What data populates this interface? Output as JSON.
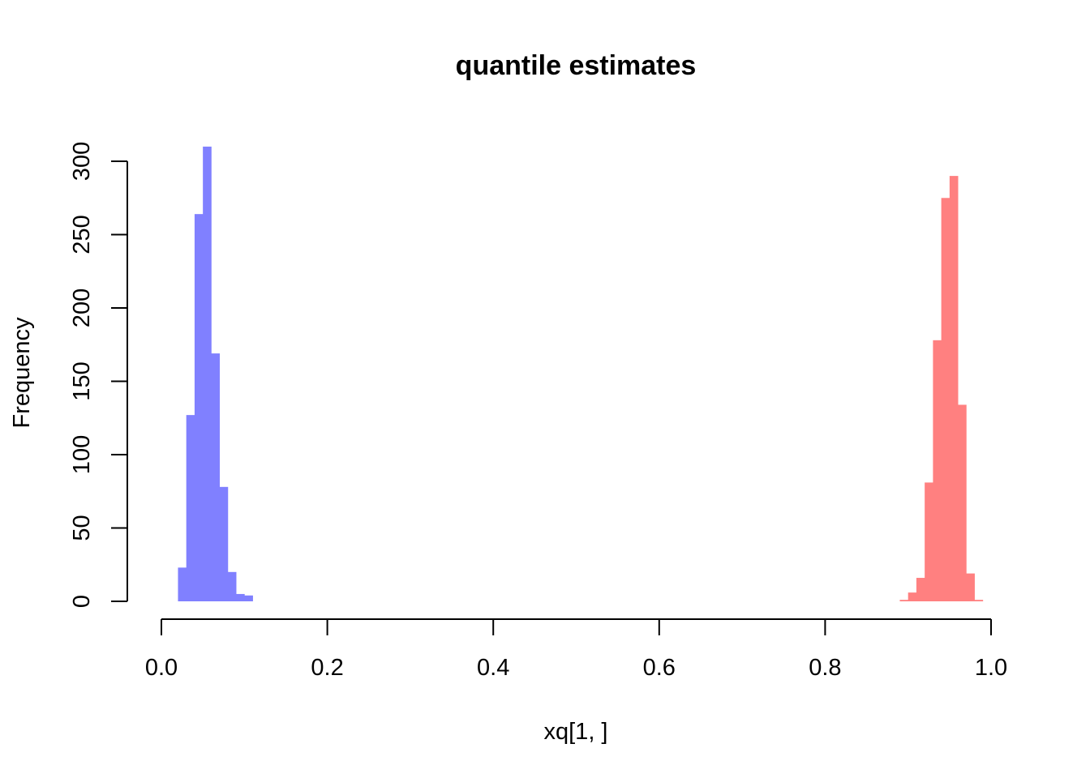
{
  "chart_data": {
    "type": "bar",
    "title": "quantile estimates",
    "xlabel": "xq[1, ]",
    "ylabel": "Frequency",
    "xlim": [
      0,
      1
    ],
    "ylim": [
      0,
      310
    ],
    "x_ticks": [
      0.0,
      0.2,
      0.4,
      0.6,
      0.8,
      1.0
    ],
    "x_tick_labels": [
      "0.0",
      "0.2",
      "0.4",
      "0.6",
      "0.8",
      "1.0"
    ],
    "y_ticks": [
      0,
      50,
      100,
      150,
      200,
      250,
      300
    ],
    "y_tick_labels": [
      "0",
      "50",
      "100",
      "150",
      "200",
      "250",
      "300"
    ],
    "grid": false,
    "legend": "none",
    "series": [
      {
        "color": "#8080ff",
        "bin_width": 0.01,
        "bins": [
          {
            "x0": 0.02,
            "x1": 0.03,
            "count": 23
          },
          {
            "x0": 0.03,
            "x1": 0.04,
            "count": 127
          },
          {
            "x0": 0.04,
            "x1": 0.05,
            "count": 264
          },
          {
            "x0": 0.05,
            "x1": 0.06,
            "count": 310
          },
          {
            "x0": 0.06,
            "x1": 0.07,
            "count": 169
          },
          {
            "x0": 0.07,
            "x1": 0.08,
            "count": 78
          },
          {
            "x0": 0.08,
            "x1": 0.09,
            "count": 20
          },
          {
            "x0": 0.09,
            "x1": 0.1,
            "count": 5
          },
          {
            "x0": 0.1,
            "x1": 0.11,
            "count": 4
          }
        ]
      },
      {
        "color": "#ff8080",
        "bin_width": 0.01,
        "bins": [
          {
            "x0": 0.89,
            "x1": 0.9,
            "count": 1
          },
          {
            "x0": 0.9,
            "x1": 0.91,
            "count": 6
          },
          {
            "x0": 0.91,
            "x1": 0.92,
            "count": 16
          },
          {
            "x0": 0.92,
            "x1": 0.93,
            "count": 81
          },
          {
            "x0": 0.93,
            "x1": 0.94,
            "count": 178
          },
          {
            "x0": 0.94,
            "x1": 0.95,
            "count": 275
          },
          {
            "x0": 0.95,
            "x1": 0.96,
            "count": 290
          },
          {
            "x0": 0.96,
            "x1": 0.97,
            "count": 134
          },
          {
            "x0": 0.97,
            "x1": 0.98,
            "count": 19
          },
          {
            "x0": 0.98,
            "x1": 0.99,
            "count": 1
          }
        ]
      }
    ]
  }
}
